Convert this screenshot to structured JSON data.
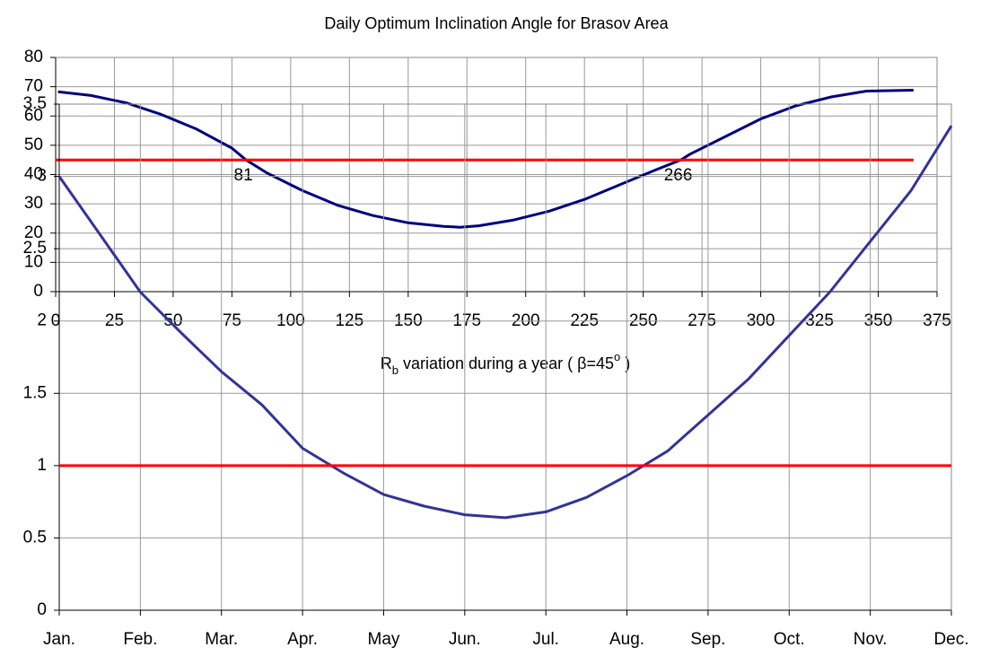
{
  "chart_data": [
    {
      "type": "line",
      "title": "Daily Optimum Inclination Angle for Brasov Area",
      "xlim": [
        0,
        375
      ],
      "xticks": [
        0,
        25,
        50,
        75,
        100,
        125,
        150,
        175,
        200,
        225,
        250,
        275,
        300,
        325,
        350,
        375
      ],
      "ylim": [
        0,
        80
      ],
      "yticks": [
        0,
        10,
        20,
        30,
        40,
        50,
        60,
        70,
        80
      ],
      "grid": true,
      "series": [
        {
          "color": "#000080",
          "x": [
            1,
            15,
            30,
            45,
            60,
            75,
            81,
            90,
            105,
            120,
            135,
            150,
            165,
            172,
            180,
            195,
            210,
            225,
            240,
            255,
            266,
            270,
            285,
            300,
            315,
            330,
            345,
            365
          ],
          "values": [
            68.3,
            67,
            64.5,
            60.5,
            55.5,
            49,
            45,
            40.5,
            34.5,
            29.5,
            26,
            23.5,
            22.3,
            22,
            22.5,
            24.5,
            27.5,
            31.5,
            36.5,
            41.5,
            45,
            47,
            53,
            59,
            63.5,
            66.5,
            68.5,
            68.8
          ]
        },
        {
          "color": "#ff0000",
          "x": [
            0,
            365
          ],
          "values": [
            45,
            45
          ]
        }
      ],
      "annotations": [
        81,
        266
      ]
    },
    {
      "type": "line",
      "title": [
        "R",
        "b",
        " variation during a year ( β=45",
        "o",
        " )"
      ],
      "categories": [
        "Jan.",
        null,
        "Feb.",
        null,
        "Mar.",
        null,
        "Apr.",
        null,
        "May",
        null,
        "Jun.",
        null,
        "Jul.",
        null,
        "Aug.",
        null,
        "Sep.",
        null,
        "Oct.",
        null,
        "Nov.",
        null,
        "Dec."
      ],
      "ylim": [
        0,
        3.5
      ],
      "yticks": [
        0,
        0.5,
        1,
        1.5,
        2,
        2.5,
        3,
        3.5
      ],
      "grid": true,
      "series": [
        {
          "color": "#333399",
          "values": [
            3.0,
            2.6,
            2.2,
            1.92,
            1.65,
            1.42,
            1.12,
            0.95,
            0.8,
            0.72,
            0.66,
            0.64,
            0.68,
            0.78,
            0.93,
            1.1,
            1.35,
            1.6,
            1.9,
            2.2,
            2.55,
            2.9,
            3.35
          ]
        },
        {
          "color": "#ff0000",
          "values": [
            1,
            1,
            1,
            1,
            1,
            1,
            1,
            1,
            1,
            1,
            1,
            1,
            1,
            1,
            1,
            1,
            1,
            1,
            1,
            1,
            1,
            1,
            1
          ]
        }
      ]
    }
  ]
}
